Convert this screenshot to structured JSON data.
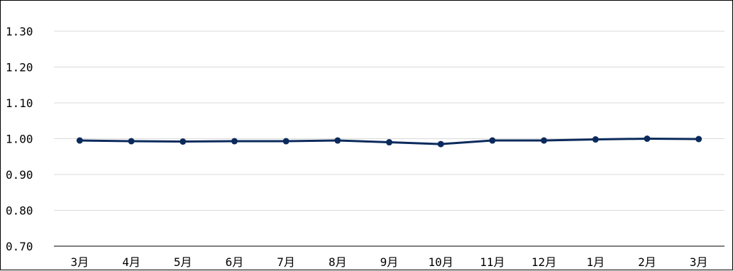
{
  "chart_data": {
    "type": "line",
    "categories": [
      "3月",
      "4月",
      "5月",
      "6月",
      "7月",
      "8月",
      "9月",
      "10月",
      "11月",
      "12月",
      "1月",
      "2月",
      "3月"
    ],
    "series": [
      {
        "values": [
          0.995,
          0.993,
          0.992,
          0.993,
          0.993,
          0.995,
          0.99,
          0.985,
          0.995,
          0.995,
          0.998,
          1.0,
          0.999
        ],
        "color": "#0b2a5c"
      }
    ],
    "yticks": [
      "1.30",
      "1.20",
      "1.10",
      "1.00",
      "0.90",
      "0.80",
      "0.70"
    ],
    "ylim": [
      0.7,
      1.3
    ],
    "grid": true,
    "legend": "none"
  }
}
